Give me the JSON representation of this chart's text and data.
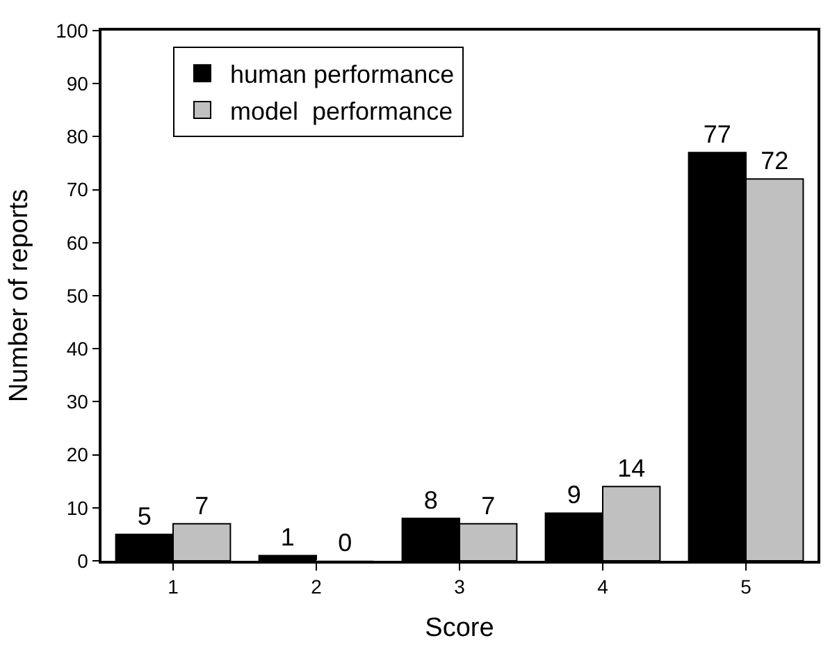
{
  "chart_data": {
    "type": "bar",
    "xlabel": "Score",
    "ylabel": "Number of reports",
    "categories": [
      "1",
      "2",
      "3",
      "4",
      "5"
    ],
    "series": [
      {
        "name": "human performance",
        "color": "#000000",
        "values": [
          5,
          1,
          8,
          9,
          77
        ]
      },
      {
        "name": "model  performance",
        "color": "#c0c0c0",
        "values": [
          7,
          0,
          7,
          14,
          72
        ]
      }
    ],
    "ylim": [
      0,
      100
    ],
    "yticks": [
      0,
      10,
      20,
      30,
      40,
      50,
      60,
      70,
      80,
      90,
      100
    ],
    "data_labels": true,
    "legend": "top left"
  }
}
